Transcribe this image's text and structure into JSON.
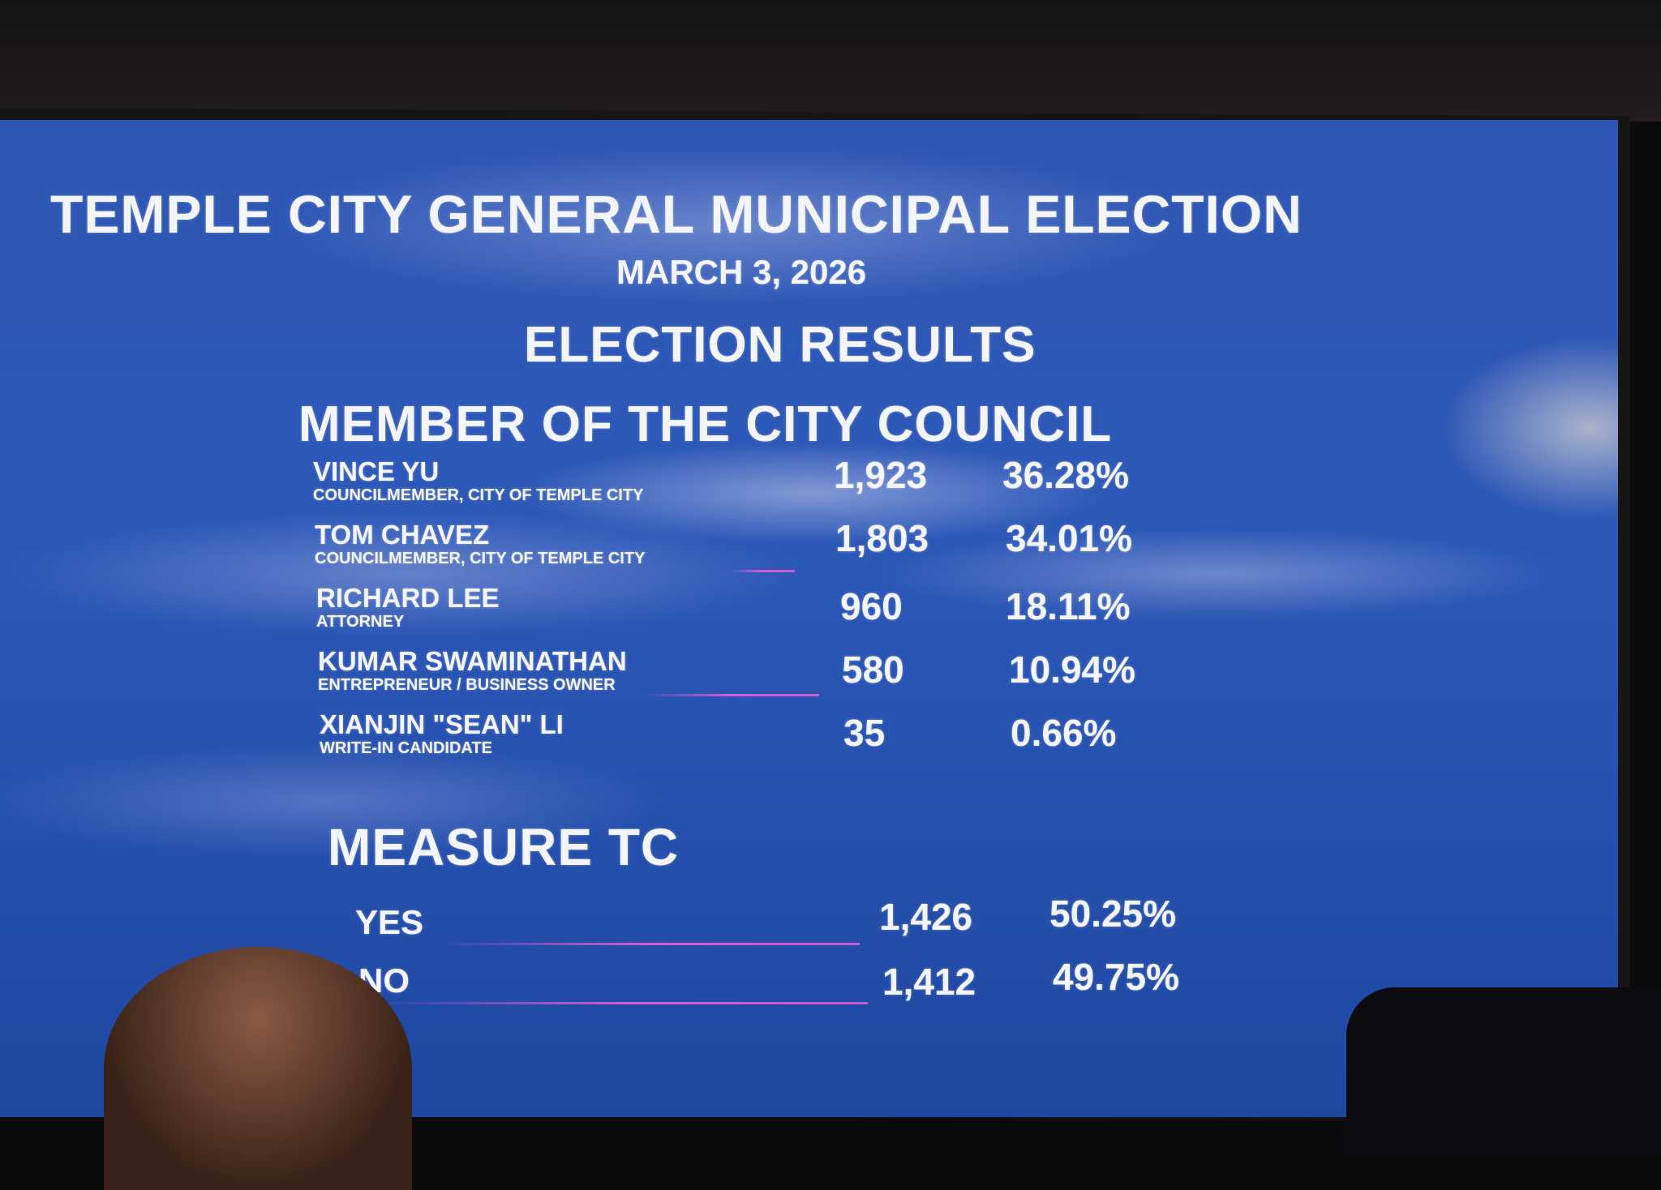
{
  "title": "TEMPLE CITY GENERAL MUNICIPAL ELECTION",
  "date": "MARCH 3, 2026",
  "heading": "ELECTION RESULTS",
  "council": {
    "heading": "MEMBER OF THE CITY COUNCIL",
    "candidates": [
      {
        "name": "VINCE YU",
        "occupation": "COUNCILMEMBER, CITY OF TEMPLE CITY",
        "votes": "1,923",
        "percent": "36.28%"
      },
      {
        "name": "TOM CHAVEZ",
        "occupation": "COUNCILMEMBER, CITY OF TEMPLE CITY",
        "votes": "1,803",
        "percent": "34.01%"
      },
      {
        "name": "RICHARD LEE",
        "occupation": "ATTORNEY",
        "votes": "960",
        "percent": "18.11%"
      },
      {
        "name": "KUMAR SWAMINATHAN",
        "occupation": "ENTREPRENEUR / BUSINESS OWNER",
        "votes": "580",
        "percent": "10.94%"
      },
      {
        "name": "XIANJIN \"SEAN\" LI",
        "occupation": "WRITE-IN CANDIDATE",
        "votes": "35",
        "percent": "0.66%"
      }
    ]
  },
  "measure": {
    "heading": "MEASURE TC",
    "options": [
      {
        "label": "YES",
        "votes": "1,426",
        "percent": "50.25%"
      },
      {
        "label": "NO",
        "votes": "1,412",
        "percent": "49.75%"
      }
    ]
  },
  "colors": {
    "screen": "#2c58b8",
    "text": "#f4f5fb",
    "accent_line": "#d55ad6"
  }
}
